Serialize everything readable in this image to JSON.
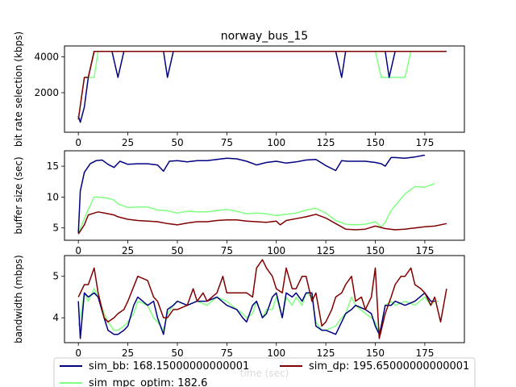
{
  "chart_data": [
    {
      "type": "line",
      "title": "norway_bus_15",
      "xlabel": "",
      "ylabel": "bit rate selection (kbps)",
      "xlim": [
        -7,
        195
      ],
      "ylim": [
        -200,
        4600
      ],
      "xticks": [
        0,
        25,
        50,
        75,
        100,
        125,
        150,
        175
      ],
      "yticks": [
        2000,
        4000
      ],
      "grid": false,
      "series": [
        {
          "name": "sim_bb",
          "color": "#000080",
          "x": [
            0,
            1,
            3,
            5,
            8,
            10,
            15,
            17,
            20,
            23,
            25,
            30,
            35,
            40,
            43,
            45,
            48,
            50,
            75,
            100,
            125,
            130,
            133,
            135,
            150,
            155,
            157,
            160,
            165,
            170,
            175,
            180
          ],
          "y": [
            700,
            350,
            1200,
            2850,
            4300,
            4300,
            4300,
            4300,
            2850,
            4300,
            4300,
            4300,
            4300,
            4300,
            4300,
            2850,
            4300,
            4300,
            4300,
            4300,
            4300,
            4300,
            2850,
            4300,
            4300,
            4300,
            2850,
            4300,
            4300,
            4300,
            4300,
            4300
          ]
        },
        {
          "name": "sim_dp",
          "color": "#800000",
          "x": [
            0,
            3,
            5,
            8,
            10,
            25,
            50,
            75,
            100,
            125,
            150,
            175,
            186
          ],
          "y": [
            500,
            2850,
            2850,
            4300,
            4300,
            4300,
            4300,
            4300,
            4300,
            4300,
            4300,
            4300,
            4300
          ]
        },
        {
          "name": "sim_mpc_optim",
          "color": "#80ff80",
          "x": [
            0,
            3,
            5,
            8,
            10,
            15,
            18,
            20,
            25,
            50,
            75,
            100,
            125,
            150,
            153,
            155,
            160,
            165,
            168,
            175,
            182
          ],
          "y": [
            600,
            2850,
            2850,
            2850,
            4300,
            4300,
            4300,
            4300,
            4300,
            4300,
            4300,
            4300,
            4300,
            4300,
            2850,
            2850,
            2850,
            2850,
            4300,
            4300,
            4300
          ]
        }
      ]
    },
    {
      "type": "line",
      "title": "",
      "xlabel": "",
      "ylabel": "buffer size (sec)",
      "xlim": [
        -7,
        195
      ],
      "ylim": [
        3.0,
        17.5
      ],
      "xticks": [
        0,
        25,
        50,
        75,
        100,
        125,
        150,
        175
      ],
      "yticks": [
        5,
        10,
        15
      ],
      "grid": false,
      "series": [
        {
          "name": "sim_bb",
          "color": "#000080",
          "x": [
            0,
            1,
            3,
            6,
            9,
            12,
            15,
            18,
            21,
            25,
            30,
            35,
            40,
            43,
            46,
            50,
            55,
            60,
            65,
            70,
            75,
            80,
            85,
            90,
            95,
            100,
            105,
            110,
            115,
            120,
            125,
            130,
            133,
            136,
            140,
            145,
            150,
            153,
            155,
            158,
            160,
            165,
            170,
            175
          ],
          "y": [
            4.2,
            11,
            14,
            15.4,
            15.9,
            16.0,
            15.3,
            14.8,
            15.8,
            15.3,
            15.4,
            15.4,
            15.2,
            14.2,
            15.8,
            15.9,
            15.7,
            15.9,
            15.9,
            16.1,
            16.3,
            16.2,
            15.8,
            15.2,
            15.6,
            15.8,
            15.5,
            15.7,
            16.0,
            16.1,
            15.1,
            14.3,
            15.9,
            15.8,
            15.8,
            15.8,
            15.6,
            15.4,
            15.0,
            16.4,
            16.4,
            16.3,
            16.5,
            16.8
          ]
        },
        {
          "name": "sim_dp",
          "color": "#800000",
          "x": [
            0,
            3,
            5,
            8,
            10,
            15,
            18,
            20,
            25,
            30,
            35,
            40,
            45,
            50,
            55,
            60,
            65,
            70,
            75,
            80,
            85,
            90,
            95,
            100,
            102,
            105,
            110,
            115,
            120,
            125,
            130,
            135,
            140,
            145,
            150,
            155,
            160,
            165,
            170,
            175,
            180,
            186
          ],
          "y": [
            4.0,
            5.5,
            7.1,
            7.4,
            7.6,
            7.3,
            7.1,
            6.8,
            6.4,
            6.2,
            6.1,
            6.0,
            5.7,
            5.5,
            5.8,
            6.0,
            6.0,
            6.2,
            6.3,
            6.3,
            6.1,
            6.0,
            5.9,
            6.1,
            5.5,
            6.2,
            6.5,
            6.8,
            7.2,
            6.6,
            5.7,
            4.8,
            4.7,
            4.8,
            5.3,
            4.9,
            4.7,
            4.8,
            5.0,
            5.2,
            5.3,
            5.7
          ]
        },
        {
          "name": "sim_mpc_optim",
          "color": "#80ff80",
          "x": [
            0,
            3,
            5,
            8,
            10,
            15,
            18,
            20,
            25,
            30,
            35,
            40,
            45,
            50,
            55,
            60,
            65,
            70,
            75,
            80,
            85,
            90,
            95,
            100,
            105,
            110,
            115,
            120,
            125,
            130,
            135,
            140,
            145,
            150,
            153,
            155,
            158,
            160,
            165,
            170,
            175,
            180
          ],
          "y": [
            4.1,
            6.5,
            8.0,
            10.0,
            10.0,
            9.8,
            9.5,
            8.9,
            8.3,
            8.4,
            8.4,
            7.9,
            7.8,
            7.4,
            7.7,
            7.6,
            7.6,
            7.8,
            8.0,
            7.7,
            7.3,
            7.4,
            7.3,
            7.0,
            7.2,
            7.4,
            7.9,
            8.2,
            7.4,
            6.2,
            5.6,
            5.5,
            5.6,
            6.0,
            5.2,
            5.9,
            7.8,
            8.6,
            10.5,
            11.7,
            11.6,
            12.2
          ]
        }
      ]
    },
    {
      "type": "line",
      "title": "",
      "xlabel": "time (sec)",
      "ylabel": "bandwidth (mbps)",
      "xlim": [
        -7,
        195
      ],
      "ylim": [
        3.4,
        5.5
      ],
      "xticks": [
        0,
        25,
        50,
        75,
        100,
        125,
        150,
        175
      ],
      "yticks": [
        4,
        5
      ],
      "grid": false,
      "series": [
        {
          "name": "sim_bb",
          "color": "#000080",
          "x": [
            0,
            1,
            3,
            5,
            8,
            10,
            13,
            15,
            18,
            20,
            23,
            25,
            28,
            30,
            35,
            38,
            40,
            43,
            45,
            48,
            50,
            55,
            60,
            65,
            70,
            75,
            80,
            83,
            85,
            88,
            90,
            93,
            95,
            98,
            100,
            103,
            105,
            108,
            110,
            113,
            115,
            118,
            120,
            123,
            125,
            130,
            133,
            135,
            138,
            140,
            145,
            148,
            150,
            152,
            153,
            155,
            158,
            160,
            165,
            170,
            175,
            178,
            180
          ],
          "y": [
            4.4,
            3.5,
            4.6,
            4.5,
            4.6,
            4.5,
            4.0,
            3.7,
            3.6,
            3.6,
            3.7,
            3.8,
            4.3,
            4.5,
            4.3,
            4.4,
            4.0,
            3.6,
            4.2,
            4.3,
            4.4,
            4.3,
            4.4,
            4.4,
            4.5,
            4.3,
            4.2,
            4.0,
            3.9,
            4.3,
            4.4,
            4.0,
            4.1,
            4.5,
            4.6,
            4.0,
            4.6,
            4.5,
            4.6,
            4.4,
            4.6,
            4.6,
            3.8,
            3.7,
            3.7,
            3.6,
            3.9,
            4.1,
            4.2,
            4.3,
            4.2,
            4.1,
            3.8,
            3.6,
            3.8,
            4.3,
            4.3,
            4.4,
            4.3,
            4.4,
            4.6,
            4.4,
            4.4
          ]
        },
        {
          "name": "sim_dp",
          "color": "#800000",
          "x": [
            0,
            3,
            5,
            8,
            10,
            13,
            15,
            18,
            20,
            23,
            25,
            30,
            35,
            38,
            40,
            43,
            45,
            48,
            50,
            55,
            58,
            60,
            63,
            65,
            70,
            73,
            75,
            78,
            80,
            83,
            85,
            88,
            90,
            93,
            95,
            98,
            100,
            103,
            105,
            108,
            110,
            113,
            115,
            118,
            120,
            123,
            125,
            128,
            130,
            133,
            135,
            138,
            140,
            143,
            145,
            148,
            150,
            152,
            155,
            158,
            160,
            163,
            165,
            168,
            170,
            173,
            175,
            178,
            180,
            183,
            186
          ],
          "y": [
            4.5,
            4.8,
            4.8,
            5.2,
            4.6,
            4.0,
            3.9,
            4.0,
            4.1,
            4.2,
            4.4,
            5.0,
            4.9,
            4.5,
            4.4,
            4.0,
            4.0,
            4.2,
            4.2,
            4.3,
            4.7,
            4.4,
            4.6,
            4.4,
            4.6,
            5.0,
            4.6,
            4.6,
            4.6,
            4.6,
            4.6,
            4.5,
            5.2,
            5.4,
            5.2,
            5.0,
            4.7,
            4.6,
            5.2,
            4.7,
            4.7,
            5.0,
            5.0,
            4.4,
            4.6,
            3.8,
            3.9,
            4.2,
            4.5,
            4.6,
            4.8,
            5.0,
            4.4,
            4.5,
            4.2,
            4.5,
            5.2,
            3.5,
            4.1,
            4.5,
            4.8,
            5.0,
            5.0,
            5.2,
            4.8,
            4.7,
            4.6,
            4.3,
            4.5,
            3.9,
            4.7
          ]
        },
        {
          "name": "sim_mpc_optim",
          "color": "#80ff80",
          "x": [
            0,
            1,
            3,
            5,
            8,
            10,
            13,
            15,
            18,
            20,
            23,
            25,
            28,
            30,
            35,
            38,
            40,
            43,
            45,
            48,
            50,
            55,
            60,
            65,
            70,
            75,
            80,
            83,
            85,
            88,
            90,
            93,
            95,
            98,
            100,
            103,
            105,
            108,
            110,
            113,
            115,
            118,
            120,
            123,
            125,
            130,
            133,
            135,
            138,
            140,
            145,
            148,
            150,
            152,
            153,
            155,
            158,
            160,
            165,
            170,
            175,
            178,
            180,
            182
          ],
          "y": [
            3.8,
            4.0,
            4.6,
            4.4,
            4.7,
            4.5,
            4.1,
            3.9,
            3.7,
            3.7,
            3.8,
            3.9,
            4.1,
            4.4,
            4.3,
            4.0,
            3.9,
            3.7,
            4.1,
            4.3,
            4.4,
            4.3,
            4.4,
            4.3,
            4.5,
            4.4,
            4.2,
            4.1,
            4.0,
            4.1,
            4.4,
            4.0,
            4.2,
            4.2,
            4.5,
            4.0,
            4.5,
            4.3,
            4.5,
            4.3,
            4.6,
            4.5,
            3.9,
            3.7,
            3.7,
            3.8,
            4.0,
            4.1,
            4.5,
            4.3,
            4.1,
            4.0,
            3.9,
            3.6,
            3.8,
            4.3,
            4.4,
            4.3,
            4.4,
            4.3,
            4.5,
            4.3,
            4.4,
            4.4
          ]
        }
      ]
    }
  ],
  "legend": {
    "placement": "bottom",
    "entries": [
      {
        "label": "sim_bb: 168.15000000000001",
        "color": "#000080"
      },
      {
        "label": "sim_dp: 195.65000000000001",
        "color": "#800000"
      },
      {
        "label": "sim_mpc_optim: 182.6",
        "color": "#80ff80"
      }
    ]
  }
}
